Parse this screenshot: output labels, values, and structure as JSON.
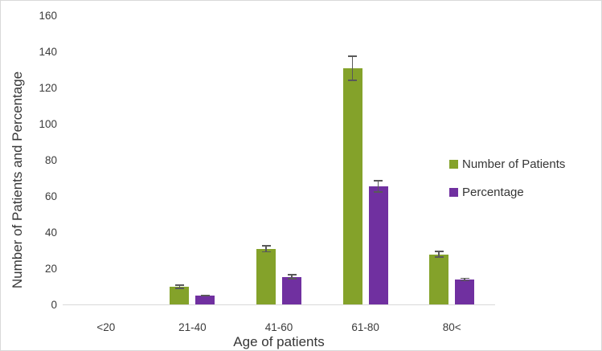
{
  "chart_data": {
    "type": "bar",
    "title": "",
    "categories": [
      "<20",
      "21-40",
      "41-60",
      "61-80",
      "80<"
    ],
    "series": [
      {
        "name": "Number of Patients",
        "color": "#84A22A",
        "values": [
          0,
          10,
          31,
          131,
          28
        ],
        "errors": [
          0,
          1.2,
          2,
          7,
          1.8
        ]
      },
      {
        "name": "Percentage",
        "color": "#7030A0",
        "values": [
          0,
          5,
          15.5,
          65.5,
          14
        ],
        "errors": [
          0,
          0.5,
          1.5,
          3.5,
          1
        ]
      }
    ],
    "xlabel": "Age of patients",
    "ylabel": "Number of Patients and Percentage",
    "ylim": [
      0,
      160
    ],
    "ytick_step": 20,
    "yticks": [
      "0",
      "20",
      "40",
      "60",
      "80",
      "100",
      "120",
      "140",
      "160"
    ],
    "grid": false,
    "legend_position": "right",
    "error_bars": true
  },
  "colors": {
    "background": "#FFFFFF",
    "chart_border": "#D9D9D9",
    "axis_line": "#D9D9D9",
    "error_bar": "#595959",
    "text": "#363636"
  }
}
